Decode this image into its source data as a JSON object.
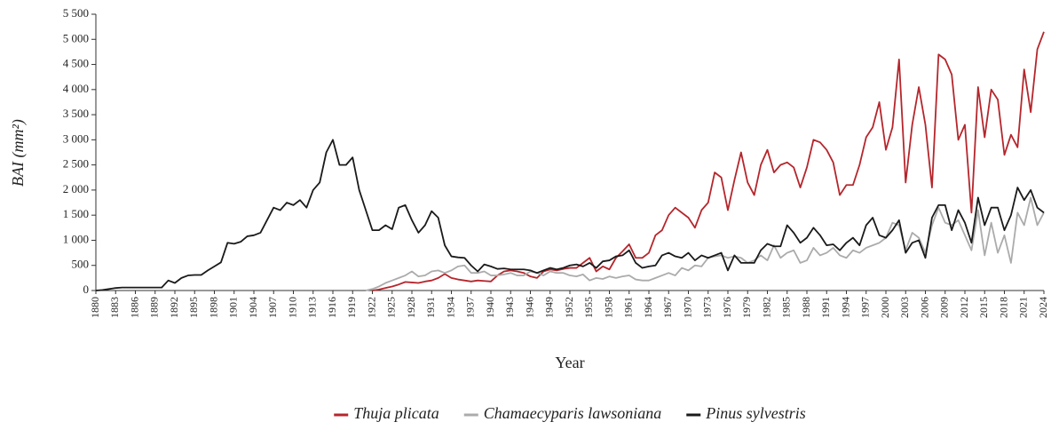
{
  "chart_data": {
    "type": "line",
    "x_label": "Year",
    "y_label": "BAI (mm²)",
    "x": [
      1880,
      1881,
      1882,
      1883,
      1884,
      1885,
      1886,
      1887,
      1888,
      1889,
      1890,
      1891,
      1892,
      1893,
      1894,
      1895,
      1896,
      1897,
      1898,
      1899,
      1900,
      1901,
      1902,
      1903,
      1904,
      1905,
      1906,
      1907,
      1908,
      1909,
      1910,
      1911,
      1912,
      1913,
      1914,
      1915,
      1916,
      1917,
      1918,
      1919,
      1920,
      1921,
      1922,
      1923,
      1924,
      1925,
      1926,
      1927,
      1928,
      1929,
      1930,
      1931,
      1932,
      1933,
      1934,
      1935,
      1936,
      1937,
      1938,
      1939,
      1940,
      1941,
      1942,
      1943,
      1944,
      1945,
      1946,
      1947,
      1948,
      1949,
      1950,
      1951,
      1952,
      1953,
      1954,
      1955,
      1956,
      1957,
      1958,
      1959,
      1960,
      1961,
      1962,
      1963,
      1964,
      1965,
      1966,
      1967,
      1968,
      1969,
      1970,
      1971,
      1972,
      1973,
      1974,
      1975,
      1976,
      1977,
      1978,
      1979,
      1980,
      1981,
      1982,
      1983,
      1984,
      1985,
      1986,
      1987,
      1988,
      1989,
      1990,
      1991,
      1992,
      1993,
      1994,
      1995,
      1996,
      1997,
      1998,
      1999,
      2000,
      2001,
      2002,
      2003,
      2004,
      2005,
      2006,
      2007,
      2008,
      2009,
      2010,
      2011,
      2012,
      2013,
      2014,
      2015,
      2016,
      2017,
      2018,
      2019,
      2020,
      2021,
      2022,
      2023,
      2024
    ],
    "series": [
      {
        "name": "Thuja plicata",
        "color": "#b5262c",
        "values": [
          null,
          null,
          null,
          null,
          null,
          null,
          null,
          null,
          null,
          null,
          null,
          null,
          null,
          null,
          null,
          null,
          null,
          null,
          null,
          null,
          null,
          null,
          null,
          null,
          null,
          null,
          null,
          null,
          null,
          null,
          null,
          null,
          null,
          null,
          null,
          null,
          null,
          null,
          null,
          null,
          null,
          null,
          0,
          20,
          50,
          80,
          120,
          170,
          160,
          150,
          180,
          200,
          250,
          330,
          250,
          220,
          200,
          180,
          200,
          190,
          180,
          300,
          380,
          400,
          380,
          350,
          280,
          250,
          380,
          420,
          400,
          430,
          450,
          450,
          550,
          650,
          380,
          480,
          420,
          650,
          780,
          920,
          650,
          650,
          750,
          1100,
          1200,
          1500,
          1650,
          1550,
          1450,
          1250,
          1600,
          1750,
          2350,
          2250,
          1600,
          2200,
          2750,
          2150,
          1900,
          2500,
          2800,
          2350,
          2500,
          2550,
          2450,
          2050,
          2450,
          3000,
          2950,
          2800,
          2550,
          1900,
          2100,
          2100,
          2500,
          3050,
          3250,
          3750,
          2800,
          3250,
          4600,
          2150,
          3300,
          4050,
          3300,
          2050,
          4700,
          4600,
          4300,
          3000,
          3300,
          1550,
          4050,
          3050,
          4000,
          3800,
          2700,
          3100,
          2850,
          4400,
          3550,
          4800,
          5150
        ]
      },
      {
        "name": "Chamaecyparis lawsoniana",
        "color": "#ababab",
        "values": [
          null,
          null,
          null,
          null,
          null,
          null,
          null,
          null,
          null,
          null,
          null,
          null,
          null,
          null,
          null,
          null,
          null,
          null,
          null,
          null,
          null,
          null,
          null,
          null,
          null,
          null,
          null,
          null,
          null,
          null,
          null,
          null,
          null,
          null,
          null,
          null,
          null,
          null,
          null,
          null,
          null,
          0,
          30,
          80,
          150,
          200,
          250,
          300,
          380,
          280,
          300,
          380,
          400,
          350,
          400,
          480,
          500,
          350,
          350,
          380,
          300,
          300,
          320,
          350,
          300,
          300,
          380,
          350,
          300,
          380,
          350,
          350,
          300,
          280,
          320,
          200,
          250,
          230,
          280,
          250,
          280,
          300,
          220,
          200,
          200,
          250,
          300,
          350,
          300,
          450,
          400,
          500,
          480,
          650,
          680,
          700,
          650,
          680,
          650,
          550,
          600,
          700,
          600,
          900,
          650,
          750,
          800,
          550,
          600,
          850,
          700,
          750,
          850,
          700,
          650,
          800,
          750,
          850,
          900,
          950,
          1050,
          1350,
          1300,
          800,
          1150,
          1050,
          750,
          1300,
          1650,
          1350,
          1300,
          1400,
          1100,
          800,
          1600,
          700,
          1350,
          750,
          1100,
          550,
          1550,
          1300,
          1850,
          1300,
          1550
        ]
      },
      {
        "name": "Pinus sylvestris",
        "color": "#1a1a1a",
        "values": [
          0,
          10,
          30,
          50,
          60,
          60,
          60,
          60,
          60,
          60,
          60,
          200,
          150,
          250,
          300,
          310,
          310,
          400,
          480,
          560,
          950,
          930,
          970,
          1080,
          1100,
          1150,
          1400,
          1650,
          1600,
          1750,
          1700,
          1800,
          1650,
          2000,
          2150,
          2750,
          3000,
          2500,
          2500,
          2650,
          2000,
          1600,
          1200,
          1200,
          1300,
          1220,
          1650,
          1700,
          1400,
          1150,
          1300,
          1580,
          1450,
          900,
          680,
          660,
          650,
          500,
          380,
          520,
          480,
          430,
          440,
          420,
          420,
          420,
          400,
          350,
          400,
          450,
          420,
          450,
          500,
          520,
          480,
          550,
          450,
          580,
          600,
          680,
          700,
          800,
          550,
          450,
          480,
          500,
          700,
          750,
          680,
          650,
          750,
          600,
          700,
          650,
          700,
          750,
          400,
          700,
          550,
          550,
          550,
          800,
          930,
          880,
          880,
          1300,
          1150,
          950,
          1050,
          1250,
          1100,
          900,
          920,
          800,
          950,
          1050,
          900,
          1300,
          1450,
          1100,
          1050,
          1200,
          1400,
          750,
          950,
          1000,
          650,
          1450,
          1700,
          1700,
          1200,
          1600,
          1350,
          950,
          1850,
          1300,
          1650,
          1650,
          1200,
          1500,
          2050,
          1800,
          2000,
          1650,
          1550
        ]
      }
    ],
    "xlim": [
      1880,
      2024
    ],
    "xticks": [
      1880,
      1883,
      1886,
      1889,
      1892,
      1895,
      1898,
      1901,
      1904,
      1907,
      1910,
      1913,
      1916,
      1919,
      1922,
      1925,
      1928,
      1931,
      1934,
      1937,
      1940,
      1943,
      1946,
      1949,
      1952,
      1955,
      1958,
      1961,
      1964,
      1967,
      1970,
      1973,
      1976,
      1979,
      1982,
      1985,
      1988,
      1991,
      1994,
      1997,
      2000,
      2003,
      2006,
      2009,
      2012,
      2015,
      2018,
      2021,
      2024
    ],
    "ylim": [
      0,
      5500
    ],
    "yticks": [
      0,
      500,
      {
        "value": 1000,
        "label": "1 000"
      },
      {
        "value": 1500,
        "label": "1 500"
      },
      {
        "value": 2000,
        "label": "2 000"
      },
      {
        "value": 2500,
        "label": "2 500"
      },
      {
        "value": 3000,
        "label": "3 000"
      },
      {
        "value": 3500,
        "label": "3 500"
      },
      {
        "value": 4000,
        "label": "4 000"
      },
      {
        "value": 4500,
        "label": "4 500"
      },
      {
        "value": 5000,
        "label": "5 000"
      },
      {
        "value": 5500,
        "label": "5 500"
      }
    ],
    "legend": "bottom"
  }
}
